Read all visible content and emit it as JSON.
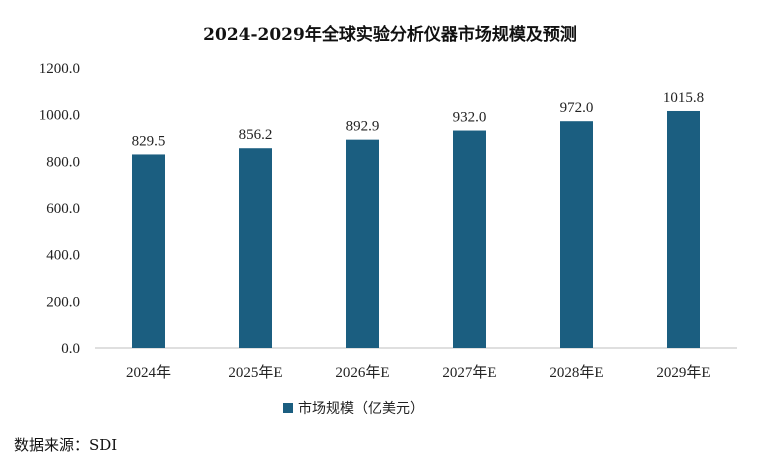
{
  "chart_data": {
    "type": "bar",
    "title": "2024-2029年全球实验分析仪器市场规模及预测",
    "categories": [
      "2024年",
      "2025年E",
      "2026年E",
      "2027年E",
      "2028年E",
      "2029年E"
    ],
    "series": [
      {
        "name": "市场规模（亿美元）",
        "values": [
          829.5,
          856.2,
          892.9,
          932.0,
          972.0,
          1015.8
        ]
      }
    ],
    "data_labels": [
      "829.5",
      "856.2",
      "892.9",
      "932.0",
      "972.0",
      "1015.8"
    ],
    "y_ticks": [
      "0.0",
      "200.0",
      "400.0",
      "600.0",
      "800.0",
      "1000.0",
      "1200.0"
    ],
    "ylim": [
      0,
      1200
    ],
    "xlabel": "",
    "ylabel": "",
    "grid": false,
    "legend_position": "bottom",
    "bar_color": "#1b5e80"
  },
  "source": "数据来源：SDI"
}
